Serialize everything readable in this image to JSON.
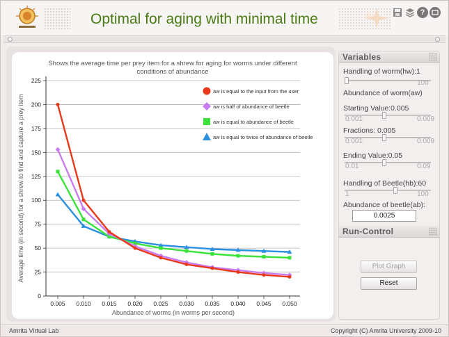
{
  "header": {
    "title": "Optimal for aging with minimal time",
    "icons": [
      "save-icon",
      "stack-icon",
      "help-icon",
      "minimize-icon"
    ],
    "help_glyph": "?"
  },
  "variables": {
    "heading": "Variables",
    "handling_worm": {
      "label": "Handling of worm(hw):1",
      "min": "",
      "max": "100",
      "value": 1
    },
    "abundance_worm_heading": "Abundance of worm(aw)",
    "starting_value": {
      "label": "Starting Value:0.005",
      "min": "0.001",
      "max": "0.009",
      "value": 0.005
    },
    "fractions": {
      "label": "Fractions: 0.005",
      "min": "0.001",
      "max": "0.009",
      "value": 0.005
    },
    "ending_value": {
      "label": "Ending Value:0.05",
      "min": "0.01",
      "max": "0.09",
      "value": 0.05
    },
    "handling_beetle": {
      "label": "Handling of Beetle(hb):60",
      "min": "1",
      "max": "100",
      "value": 60
    },
    "abundance_beetle": {
      "label": "Abundance of beetle(ab):",
      "value": "0.0025"
    }
  },
  "run_control": {
    "heading": "Run-Control",
    "plot_label": "Plot Graph",
    "plot_enabled": false,
    "reset_label": "Reset"
  },
  "footer": {
    "left": "Amrita Virtual Lab",
    "right": "Copyright (C) Amrita University 2009-10"
  },
  "chart_data": {
    "type": "line",
    "title": "Shows the average time per prey item for a shrew for aging for worms under different conditions of abundance",
    "title_lines": [
      "Shows the average time per prey item for a shrew for aging for worms under different",
      "conditions of abundance"
    ],
    "xlabel": "Abundance of worms (in worms per second)",
    "ylabel": "Average time (in second) for a shrew to find and capture a prey item",
    "categories": [
      "0.005",
      "0.010",
      "0.015",
      "0.020",
      "0.025",
      "0.030",
      "0.035",
      "0.040",
      "0.045",
      "0.050"
    ],
    "yticks": [
      "0",
      "25",
      "50",
      "75",
      "100",
      "125",
      "150",
      "175",
      "200",
      "225"
    ],
    "ylim": [
      0,
      225
    ],
    "grid": true,
    "legend_position": "top-right",
    "series": [
      {
        "name": "aw is equal to the input from the user",
        "color": "#e83a1a",
        "marker": "circle",
        "values": [
          200,
          100,
          67,
          50,
          40,
          33,
          29,
          25,
          22,
          20
        ]
      },
      {
        "name": "aw is half of abundance of beetle",
        "color": "#c97cf0",
        "marker": "diamond",
        "values": [
          153,
          91,
          65,
          52,
          42,
          35,
          30,
          27,
          24,
          22
        ]
      },
      {
        "name": "aw is equal to abundance of beetle",
        "color": "#3ae33a",
        "marker": "square",
        "values": [
          130,
          80,
          62,
          55,
          50,
          47,
          44,
          42,
          41,
          40
        ]
      },
      {
        "name": "aw is equal to twice of abundance of beetle",
        "color": "#2b8fe0",
        "marker": "triangle",
        "values": [
          106,
          73,
          62,
          57,
          53,
          51,
          49,
          48,
          47,
          46
        ]
      }
    ]
  }
}
